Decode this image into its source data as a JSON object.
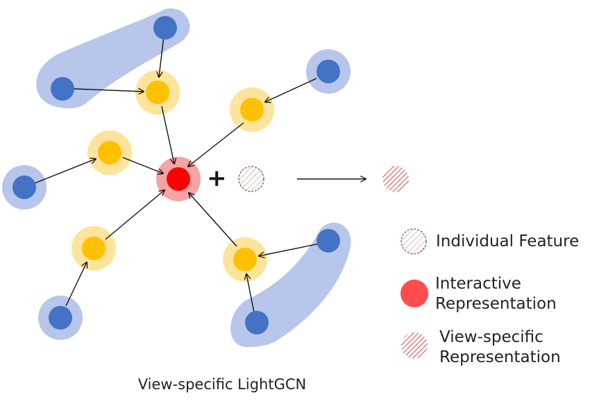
{
  "colors": {
    "cluster_fill": "#b7c6ea",
    "blue_node": "#4472c4",
    "yellow_halo": "#fde49a",
    "yellow_node": "#ffc000",
    "red_halo": "#f4a4a4",
    "red_node": "#ff0000",
    "arrow": "#111111",
    "hatch_red": "#e06060"
  },
  "operator": "+",
  "legend": {
    "individual_feature": "Individual Feature",
    "interactive_line1": "Interactive",
    "interactive_line2": "Representation",
    "view_specific_line1": "View-specific",
    "view_specific_line2": "Representation"
  },
  "caption": "View-specific LightGCN"
}
